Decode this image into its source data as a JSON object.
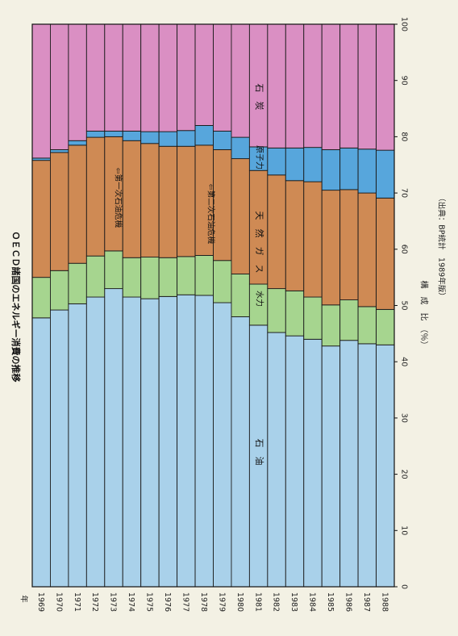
{
  "chart_data": {
    "type": "bar",
    "stacked": true,
    "orientation": "horizontal-percent-100",
    "title": "ＯＥＣＤ諸国のエネルギー消費の推移",
    "source": "（出典：BP統計　1989年版）",
    "year_label": "年",
    "xlabel": "構　成　比　（％）",
    "xlim": [
      0,
      100
    ],
    "xticks": [
      0,
      10,
      20,
      30,
      40,
      50,
      60,
      70,
      80,
      90,
      100
    ],
    "categories": [
      "1969",
      "1970",
      "1971",
      "1972",
      "1973",
      "1974",
      "1975",
      "1976",
      "1977",
      "1978",
      "1979",
      "1980",
      "1981",
      "1982",
      "1983",
      "1984",
      "1985",
      "1986",
      "1987",
      "1988"
    ],
    "series": [
      {
        "name": "石　油",
        "color": "#a9d1ea",
        "values": [
          47.8,
          49.2,
          50.3,
          51.5,
          53.0,
          51.5,
          51.2,
          51.6,
          51.9,
          51.8,
          50.5,
          48.0,
          46.5,
          45.2,
          44.6,
          44.0,
          42.8,
          43.8,
          43.2,
          43.0
        ]
      },
      {
        "name": "水力",
        "color": "#a6d58f",
        "values": [
          7.2,
          7.0,
          7.2,
          7.3,
          6.7,
          7.0,
          7.4,
          6.9,
          6.8,
          7.1,
          7.5,
          7.6,
          7.3,
          7.8,
          8.0,
          7.5,
          7.3,
          7.2,
          6.6,
          6.3
        ]
      },
      {
        "name": "天　然　ガ　ス",
        "color": "#cf8a54",
        "values": [
          20.8,
          21.0,
          21.0,
          21.1,
          20.3,
          20.8,
          20.2,
          19.8,
          19.6,
          19.6,
          19.7,
          20.5,
          20.2,
          20.2,
          19.6,
          20.5,
          20.4,
          19.6,
          20.2,
          19.8
        ]
      },
      {
        "name": "原子力",
        "color": "#57a6dc",
        "values": [
          0.4,
          0.5,
          0.8,
          1.1,
          1.0,
          1.7,
          2.1,
          2.6,
          2.8,
          3.5,
          3.3,
          3.8,
          4.2,
          4.8,
          5.8,
          6.1,
          7.2,
          7.4,
          7.8,
          8.5
        ]
      },
      {
        "name": "石　炭",
        "color": "#da8fc3",
        "values": [
          23.8,
          22.3,
          20.7,
          19.0,
          19.0,
          19.0,
          19.1,
          19.1,
          18.9,
          18.0,
          19.0,
          20.1,
          21.8,
          22.0,
          22.0,
          21.9,
          22.3,
          22.0,
          22.2,
          22.4
        ]
      }
    ],
    "annotations": [
      "⇦第一次石油危機",
      "⇦第二次石油危機"
    ]
  }
}
